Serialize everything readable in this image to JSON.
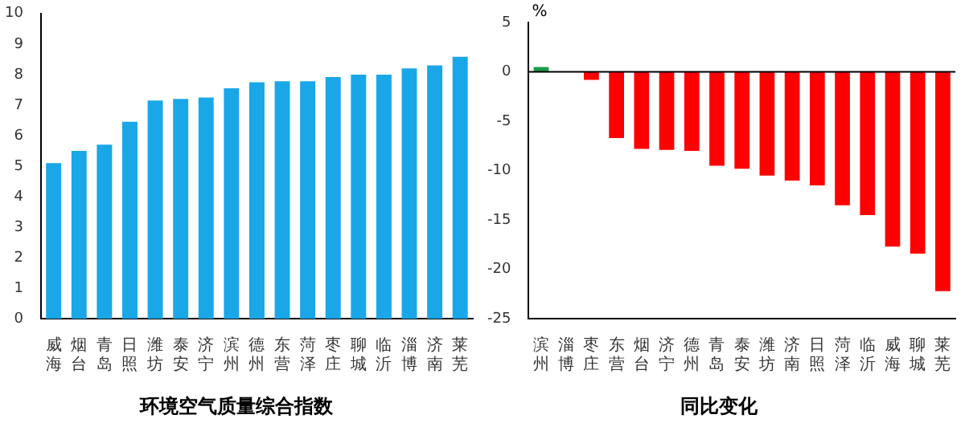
{
  "chart_data": [
    {
      "type": "bar",
      "title": "环境空气质量综合指数",
      "categories": [
        "威海",
        "烟台",
        "青岛",
        "日照",
        "潍坊",
        "泰安",
        "济宁",
        "滨州",
        "德州",
        "东营",
        "菏泽",
        "枣庄",
        "聊城",
        "临沂",
        "淄博",
        "济南",
        "莱芜"
      ],
      "values": [
        5.1,
        5.5,
        5.7,
        6.45,
        7.15,
        7.2,
        7.25,
        7.55,
        7.75,
        7.78,
        7.78,
        7.92,
        8.0,
        8.0,
        8.2,
        8.3,
        8.58
      ],
      "color": "#1aa7e8",
      "ylim": [
        0,
        10
      ],
      "yticks": [
        0,
        1,
        2,
        3,
        4,
        5,
        6,
        7,
        8,
        9,
        10
      ],
      "grid": false
    },
    {
      "type": "bar",
      "title": "同比变化",
      "ylabel": "%",
      "categories": [
        "滨州",
        "淄博",
        "枣庄",
        "东营",
        "烟台",
        "济宁",
        "德州",
        "青岛",
        "泰安",
        "潍坊",
        "济南",
        "日照",
        "菏泽",
        "临沂",
        "威海",
        "聊城",
        "莱芜"
      ],
      "values": [
        0.5,
        0,
        -0.8,
        -6.7,
        -7.8,
        -7.9,
        -8.0,
        -9.5,
        -9.8,
        -10.5,
        -11.0,
        -11.5,
        -13.5,
        -14.5,
        -17.7,
        -18.4,
        -22.2
      ],
      "colors": [
        "#1a9a4a",
        "#ff0000",
        "#ff0000",
        "#ff0000",
        "#ff0000",
        "#ff0000",
        "#ff0000",
        "#ff0000",
        "#ff0000",
        "#ff0000",
        "#ff0000",
        "#ff0000",
        "#ff0000",
        "#ff0000",
        "#ff0000",
        "#ff0000",
        "#ff0000"
      ],
      "ylim": [
        -25,
        5
      ],
      "yticks": [
        -25,
        -20,
        -15,
        -10,
        -5,
        0,
        5
      ],
      "grid": false,
      "ref_lines": [
        {
          "axis": "y",
          "value": 0,
          "color": "#000000"
        }
      ]
    }
  ]
}
